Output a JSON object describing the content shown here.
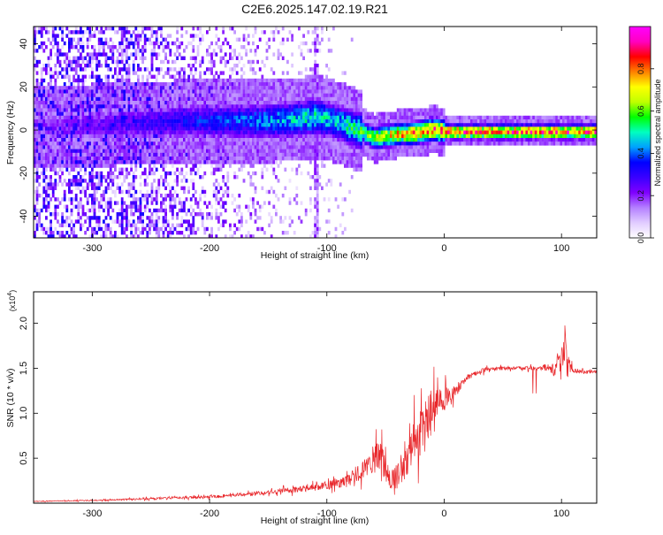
{
  "title": "C2E6.2025.147.02.19.R21",
  "chart_data": [
    {
      "type": "heatmap",
      "xlabel": "Height of straight line (km)",
      "ylabel": "Frequency (Hz)",
      "xlim": [
        -350,
        130
      ],
      "ylim": [
        -50,
        48
      ],
      "xticks": [
        -300,
        -200,
        -100,
        0,
        100
      ],
      "yticks": [
        -40,
        -20,
        0,
        20,
        40
      ],
      "colorbar": {
        "label": "Normalized spectral amplitude",
        "range": [
          0.0,
          1.0
        ],
        "ticks": [
          0.0,
          0.2,
          0.4,
          0.6,
          0.8
        ],
        "colormap": [
          "#ffffff",
          "#e1ccff",
          "#b480ff",
          "#7f00ff",
          "#3a00ff",
          "#0000ff",
          "#00a0ff",
          "#00ffc0",
          "#00ff00",
          "#c0ff00",
          "#ffff00",
          "#ff8000",
          "#ff0000",
          "#ff00c0",
          "#ff00ff"
        ]
      },
      "ridge": {
        "x": [
          -350,
          -300,
          -260,
          -220,
          -180,
          -150,
          -125,
          -110,
          -100,
          -90,
          -80,
          -70,
          -60,
          -50,
          -40,
          -30,
          -20,
          -10,
          0,
          20,
          50,
          80,
          100,
          130
        ],
        "y": [
          2,
          3,
          4,
          5,
          5,
          5,
          6,
          7,
          6,
          4,
          2,
          0,
          -3,
          -2,
          -1,
          -1,
          0,
          1,
          0,
          0,
          0,
          0,
          0,
          0
        ],
        "amplitude": [
          0.2,
          0.25,
          0.3,
          0.35,
          0.4,
          0.45,
          0.5,
          0.55,
          0.5,
          0.5,
          0.55,
          0.6,
          0.7,
          0.75,
          0.8,
          0.8,
          0.85,
          0.85,
          0.9,
          0.9,
          0.9,
          0.9,
          0.9,
          0.9
        ]
      },
      "vertical_streak_x": -110
    },
    {
      "type": "line",
      "xlabel": "Height of straight line (km)",
      "ylabel": "SNR (10 * v/v)",
      "y_multiplier_label": "(x10",
      "y_multiplier_exp": "4",
      "y_multiplier_close": ")",
      "xlim": [
        -350,
        130
      ],
      "ylim": [
        0,
        23500
      ],
      "xticks": [
        -300,
        -200,
        -100,
        0,
        100
      ],
      "yticks": [
        5000,
        10000,
        15000,
        20000
      ],
      "ytick_labels": [
        "0.5",
        "1.0",
        "1.5",
        "2.0"
      ],
      "series": [
        {
          "color": "#e8262a",
          "x": [
            -350,
            -300,
            -250,
            -200,
            -150,
            -120,
            -100,
            -80,
            -70,
            -60,
            -55,
            -50,
            -45,
            -40,
            -35,
            -30,
            -25,
            -20,
            -15,
            -10,
            -5,
            0,
            5,
            10,
            15,
            20,
            25,
            30,
            35,
            40,
            50,
            60,
            70,
            80,
            90,
            95,
            100,
            103,
            106,
            110,
            120,
            130
          ],
          "y": [
            200,
            300,
            500,
            700,
            1200,
            1600,
            2000,
            2600,
            3600,
            4500,
            5500,
            3800,
            2600,
            3000,
            4200,
            5600,
            7000,
            8800,
            9500,
            10200,
            10800,
            11500,
            12000,
            12500,
            13300,
            13900,
            14300,
            14600,
            14800,
            14900,
            15000,
            15000,
            15000,
            15000,
            14900,
            15100,
            15500,
            17500,
            15400,
            14700,
            14600,
            14600
          ],
          "noise": [
            40,
            60,
            100,
            150,
            250,
            350,
            500,
            800,
            1000,
            1500,
            1800,
            1400,
            1200,
            1400,
            1800,
            2200,
            2600,
            2800,
            2800,
            2400,
            1800,
            1400,
            900,
            700,
            500,
            400,
            350,
            300,
            250,
            200,
            200,
            200,
            200,
            200,
            250,
            1200,
            2000,
            2500,
            900,
            250,
            200,
            150
          ]
        }
      ]
    }
  ]
}
